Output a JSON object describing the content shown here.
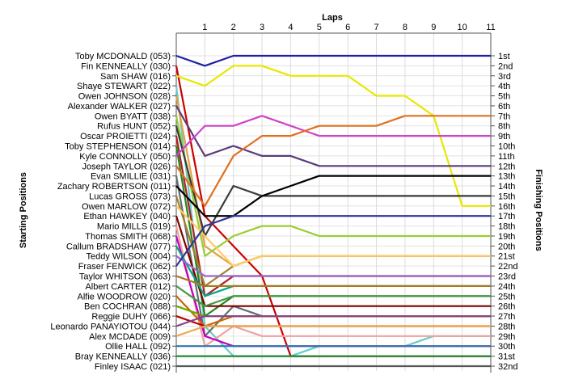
{
  "chart_data": {
    "type": "line",
    "title": "",
    "xlabel": "Laps",
    "ylabel_left": "Starting Positions",
    "ylabel_right": "Finishing Positions",
    "x_ticks": [
      "1",
      "2",
      "3",
      "4",
      "5",
      "6",
      "7",
      "8",
      "9",
      "10",
      "11"
    ],
    "y_range": [
      1,
      32
    ],
    "grid": true,
    "start_labels": [
      "Toby MCDONALD (053)",
      "Fin KENNEALLY (030)",
      "Sam SHAW (016)",
      "Shaye STEWART (022)",
      "Owen JOHNSON (028)",
      "Alexander WALKER (027)",
      "Owen BYATT (038)",
      "Rufus HUNT (052)",
      "Oscar PROIETTI (024)",
      "Toby STEPHENSON (014)",
      "Kyle CONNOLLY (050)",
      "Joseph TAYLOR (026)",
      "Evan SMILLIE (031)",
      "Zachary ROBERTSON (011)",
      "Lucas GROSS (073)",
      "Owen MARLOW (072)",
      "Ethan HAWKEY (040)",
      "Mario MILLS (019)",
      "Thomas SMITH (068)",
      "Callum BRADSHAW (077)",
      "Teddy WILSON (004)",
      "Fraser FENWICK (062)",
      "Taylor WHITSON (063)",
      "Albert CARTER (012)",
      "Alfie WOODROW (020)",
      "Ben COCHRAN (088)",
      "Reggie DUHY (066)",
      "Leonardo PANAYIOTOU (044)",
      "Alex MCDADE (009)",
      "Ollie HALL (092)",
      "Bray KENNEALLY (036)",
      "Finley ISAAC (021)"
    ],
    "finish_labels": [
      "1st",
      "2nd",
      "3rd",
      "4th",
      "5th",
      "6th",
      "7th",
      "8th",
      "9th",
      "10th",
      "11th",
      "12th",
      "13th",
      "14th",
      "15th",
      "16th",
      "17th",
      "18th",
      "19th",
      "20th",
      "21st",
      "22nd",
      "23rd",
      "24th",
      "25th",
      "26th",
      "27th",
      "28th",
      "29th",
      "30th",
      "31st",
      "32nd"
    ],
    "series": [
      {
        "color": "#1f1fa8",
        "values": [
          1,
          2,
          1,
          1,
          1,
          1,
          1,
          1,
          1,
          1,
          1,
          1
        ]
      },
      {
        "color": "#cc0000",
        "values": [
          2,
          17,
          20,
          23,
          31,
          31,
          31,
          31,
          31,
          31,
          31,
          31
        ]
      },
      {
        "color": "#e8e800",
        "values": [
          3,
          4,
          2,
          2,
          3,
          3,
          3,
          5,
          5,
          7,
          16,
          16
        ]
      },
      {
        "color": "#66cccc",
        "values": [
          4,
          28,
          31,
          31,
          31,
          30,
          30,
          30,
          30,
          29,
          29,
          29
        ]
      },
      {
        "color": "#e6a040",
        "values": [
          5,
          20,
          22,
          21,
          21,
          21,
          21,
          21,
          21,
          21,
          21,
          21
        ]
      },
      {
        "color": "#5c3c7c",
        "values": [
          6,
          11,
          10,
          11,
          11,
          12,
          12,
          12,
          12,
          12,
          12,
          12
        ]
      },
      {
        "color": "#9acd32",
        "values": [
          7,
          21,
          19,
          18,
          18,
          19,
          19,
          19,
          19,
          19,
          19,
          19
        ]
      },
      {
        "color": "#3a3a3a",
        "values": [
          8,
          19,
          14,
          15,
          15,
          15,
          15,
          15,
          15,
          15,
          15,
          15
        ]
      },
      {
        "color": "#aa2222",
        "values": [
          9,
          25,
          23,
          23,
          23,
          23,
          23,
          23,
          23,
          23,
          23,
          23
        ]
      },
      {
        "color": "#228822",
        "values": [
          10,
          27,
          25,
          25,
          25,
          25,
          25,
          25,
          25,
          25,
          25,
          25
        ]
      },
      {
        "color": "#cc44cc",
        "values": [
          11,
          8,
          8,
          7,
          8,
          9,
          9,
          9,
          9,
          9,
          9,
          9
        ]
      },
      {
        "color": "#e07020",
        "values": [
          12,
          16,
          11,
          9,
          9,
          8,
          8,
          8,
          7,
          7,
          7,
          7
        ]
      },
      {
        "color": "#607070",
        "values": [
          13,
          29,
          26,
          27,
          27,
          27,
          27,
          27,
          27,
          27,
          27,
          27
        ]
      },
      {
        "color": "#000000",
        "values": [
          14,
          17,
          17,
          15,
          14,
          13,
          13,
          13,
          13,
          13,
          13,
          13
        ]
      },
      {
        "color": "#a08030",
        "values": [
          15,
          24,
          22,
          21,
          21,
          21,
          21,
          21,
          21,
          21,
          21,
          21
        ]
      },
      {
        "color": "#ffcc66",
        "values": [
          16,
          19,
          22,
          21,
          21,
          21,
          21,
          21,
          21,
          21,
          21,
          21
        ]
      },
      {
        "color": "#800000",
        "values": [
          17,
          26,
          26,
          26,
          26,
          26,
          26,
          26,
          26,
          26,
          26,
          26
        ]
      },
      {
        "color": "#f0a0a0",
        "values": [
          18,
          30,
          28,
          29,
          29,
          29,
          29,
          29,
          29,
          29,
          29,
          29
        ]
      },
      {
        "color": "#c000c0",
        "values": [
          19,
          29,
          30,
          30,
          30,
          30,
          30,
          30,
          30,
          30,
          30,
          30
        ]
      },
      {
        "color": "#00aa88",
        "values": [
          20,
          25,
          24,
          24,
          24,
          24,
          24,
          24,
          24,
          24,
          24,
          24
        ]
      },
      {
        "color": "#9966cc",
        "values": [
          21,
          23,
          23,
          23,
          23,
          23,
          23,
          23,
          23,
          23,
          23,
          23
        ]
      },
      {
        "color": "#333399",
        "values": [
          22,
          18,
          17,
          17,
          17,
          17,
          17,
          17,
          17,
          17,
          17,
          17
        ]
      },
      {
        "color": "#aa7722",
        "values": [
          23,
          24,
          24,
          24,
          24,
          24,
          24,
          24,
          24,
          24,
          24,
          24
        ]
      },
      {
        "color": "#449944",
        "values": [
          24,
          26,
          25,
          25,
          25,
          25,
          25,
          25,
          25,
          25,
          25,
          25
        ]
      },
      {
        "color": "#cc6600",
        "values": [
          25,
          28,
          27,
          27,
          27,
          27,
          27,
          27,
          27,
          27,
          27,
          27
        ]
      },
      {
        "color": "#66aa00",
        "values": [
          26,
          27,
          27,
          27,
          27,
          27,
          27,
          27,
          27,
          27,
          27,
          27
        ]
      },
      {
        "color": "#bb0000",
        "values": [
          27,
          28,
          28,
          28,
          28,
          28,
          28,
          28,
          28,
          28,
          28,
          28
        ]
      },
      {
        "color": "#884488",
        "values": [
          28,
          27,
          27,
          27,
          27,
          27,
          27,
          27,
          27,
          27,
          27,
          27
        ]
      },
      {
        "color": "#eeaa55",
        "values": [
          29,
          28,
          28,
          28,
          28,
          28,
          28,
          28,
          28,
          28,
          28,
          28
        ]
      },
      {
        "color": "#3377aa",
        "values": [
          30,
          30,
          30,
          30,
          30,
          30,
          30,
          30,
          30,
          30,
          30,
          30
        ]
      },
      {
        "color": "#228833",
        "values": [
          31,
          31,
          31,
          31,
          31,
          31,
          31,
          31,
          31,
          31,
          31,
          31
        ]
      },
      {
        "color": "#555555",
        "values": [
          32,
          32,
          32,
          32,
          32,
          32,
          32,
          32,
          32,
          32,
          32,
          32
        ]
      }
    ]
  }
}
